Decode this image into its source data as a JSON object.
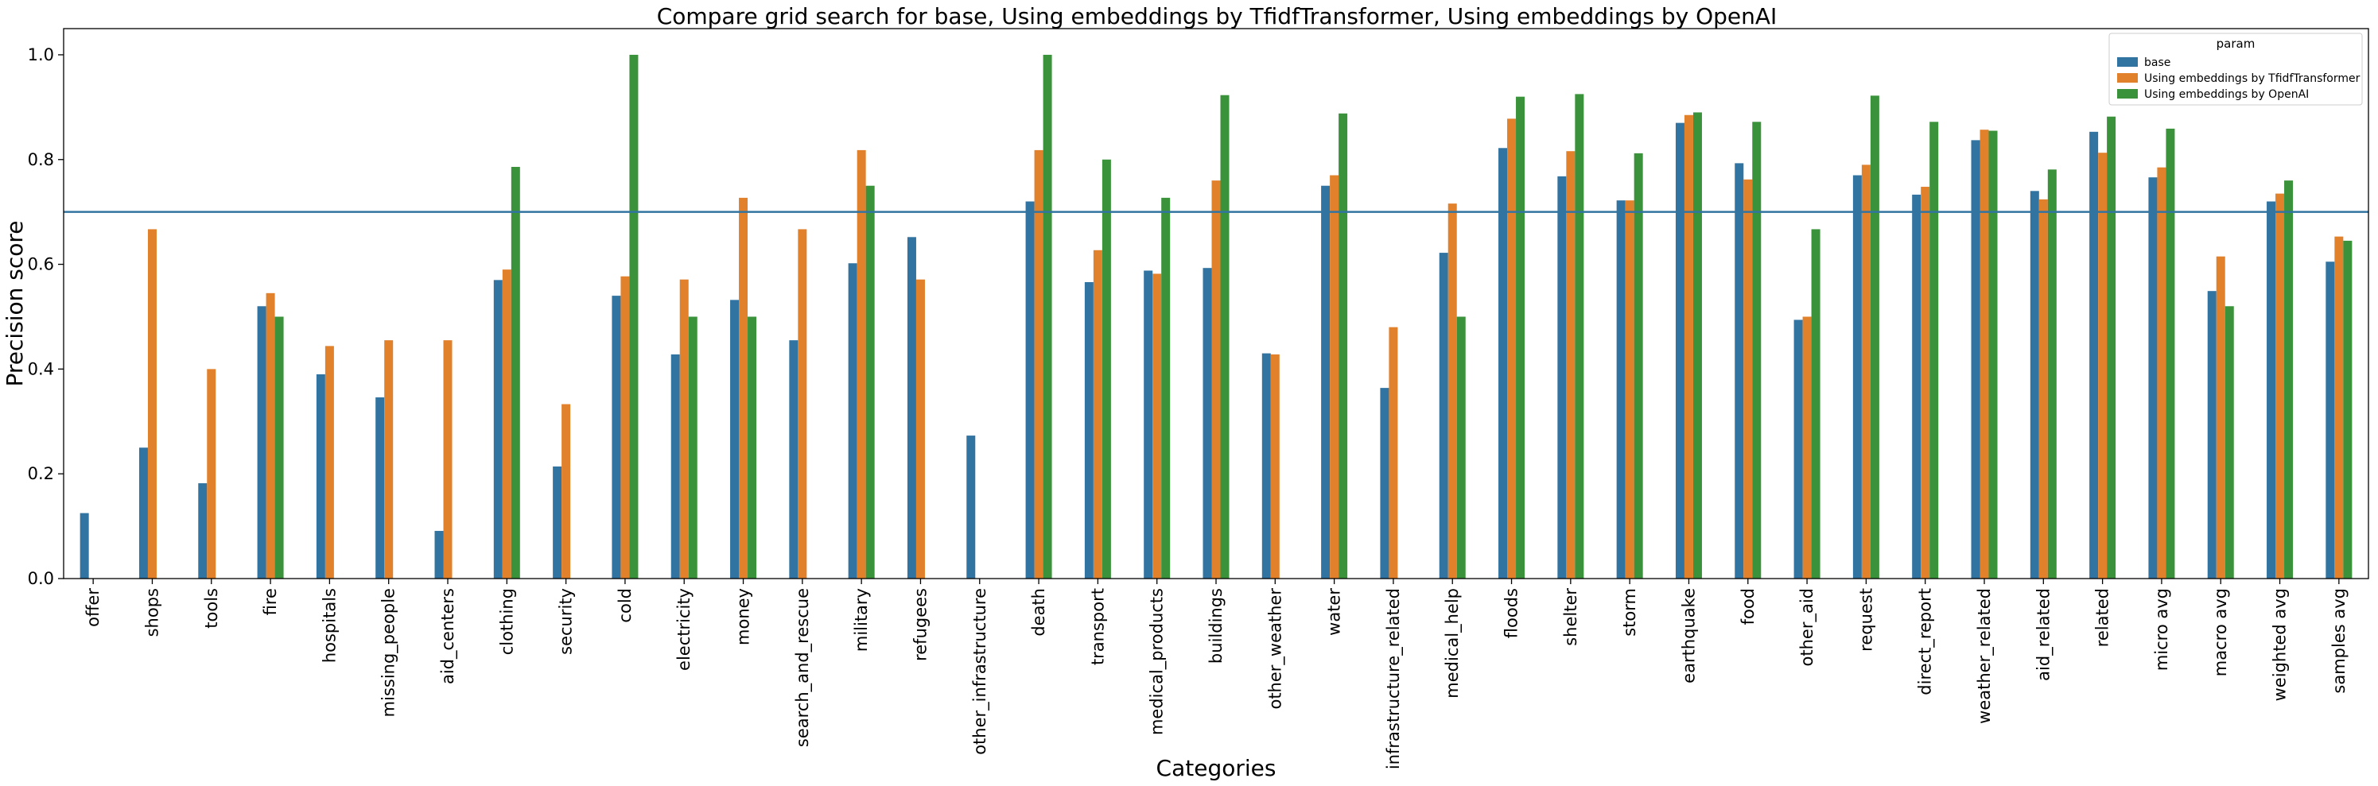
{
  "chart_data": {
    "type": "bar",
    "title": "Compare grid search for base, Using embeddings by TfidfTransformer, Using embeddings by OpenAI",
    "xlabel": "Categories",
    "ylabel": "Precision score",
    "ylim": [
      0,
      1.05
    ],
    "yticks": [
      "0.0",
      "0.2",
      "0.4",
      "0.6",
      "0.8",
      "1.0"
    ],
    "reference_line": 0.7,
    "legend": {
      "title": "param",
      "placement": "top-right"
    },
    "categories": [
      "offer",
      "shops",
      "tools",
      "fire",
      "hospitals",
      "missing_people",
      "aid_centers",
      "clothing",
      "security",
      "cold",
      "electricity",
      "money",
      "search_and_rescue",
      "military",
      "refugees",
      "other_infrastructure",
      "death",
      "transport",
      "medical_products",
      "buildings",
      "other_weather",
      "water",
      "infrastructure_related",
      "medical_help",
      "floods",
      "shelter",
      "storm",
      "earthquake",
      "food",
      "other_aid",
      "request",
      "direct_report",
      "weather_related",
      "aid_related",
      "related",
      "micro avg",
      "macro avg",
      "weighted avg",
      "samples avg"
    ],
    "series": [
      {
        "name": "base",
        "color": "#3274a1",
        "values": [
          0.125,
          0.25,
          0.182,
          0.52,
          0.39,
          0.346,
          0.091,
          0.57,
          0.214,
          0.54,
          0.428,
          0.532,
          0.455,
          0.602,
          0.652,
          0.273,
          0.72,
          0.566,
          0.588,
          0.593,
          0.43,
          0.75,
          0.364,
          0.622,
          0.822,
          0.768,
          0.722,
          0.87,
          0.793,
          0.494,
          0.77,
          0.733,
          0.837,
          0.74,
          0.853,
          0.766,
          0.549,
          0.72,
          0.605
        ]
      },
      {
        "name": "Using embeddings by TfidfTransformer",
        "color": "#e1812c",
        "values": [
          0,
          0.667,
          0.4,
          0.545,
          0.444,
          0.455,
          0.455,
          0.59,
          0.333,
          0.577,
          0.571,
          0.727,
          0.667,
          0.818,
          0.571,
          0,
          0.818,
          0.627,
          0.582,
          0.76,
          0.428,
          0.77,
          0.48,
          0.716,
          0.878,
          0.816,
          0.722,
          0.885,
          0.762,
          0.5,
          0.79,
          0.748,
          0.857,
          0.724,
          0.813,
          0.785,
          0.615,
          0.735,
          0.653
        ]
      },
      {
        "name": "Using embeddings by OpenAI",
        "color": "#3a923a",
        "values": [
          0,
          0,
          0,
          0.5,
          0,
          0,
          0,
          0.786,
          0,
          1.0,
          0.5,
          0.5,
          0,
          0.75,
          0,
          0,
          1.0,
          0.8,
          0.727,
          0.923,
          0,
          0.888,
          0,
          0.5,
          0.92,
          0.925,
          0.812,
          0.89,
          0.872,
          0.667,
          0.922,
          0.872,
          0.855,
          0.781,
          0.882,
          0.859,
          0.52,
          0.76,
          0.645
        ]
      }
    ]
  }
}
